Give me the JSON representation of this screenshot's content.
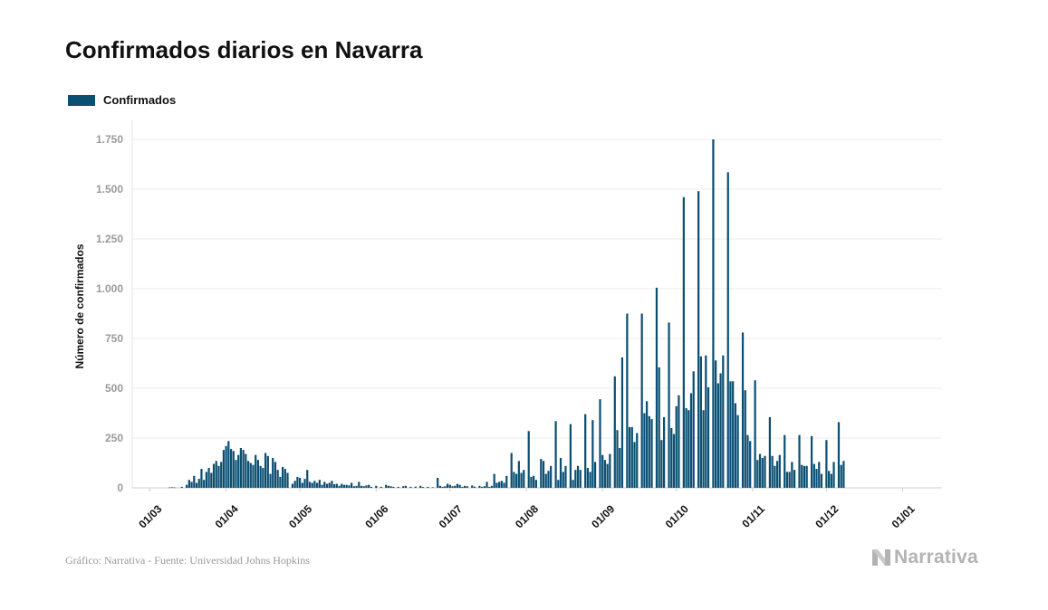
{
  "chart_data": {
    "type": "bar",
    "title": "Confirmados diarios en Navarra",
    "ylabel": "Número de confirmados",
    "xlabel": "",
    "ylim": [
      0,
      1750
    ],
    "yticks": [
      0,
      250,
      500,
      750,
      1000,
      1250,
      1500,
      1750
    ],
    "ytick_labels": [
      "0",
      "250",
      "500",
      "750",
      "1.000",
      "1.250",
      "1.500",
      "1.750"
    ],
    "xticks": [
      "01/03",
      "01/04",
      "01/05",
      "01/06",
      "01/07",
      "01/08",
      "01/09",
      "01/10",
      "01/11",
      "01/12",
      "01/01"
    ],
    "grid": true,
    "legend_position": "top-left",
    "series": [
      {
        "name": "Confirmados",
        "color": "#0b4f73",
        "points": [
          [
            "2020-03-09",
            2
          ],
          [
            "2020-03-10",
            3
          ],
          [
            "2020-03-11",
            2
          ],
          [
            "2020-03-14",
            5
          ],
          [
            "2020-03-16",
            15
          ],
          [
            "2020-03-17",
            40
          ],
          [
            "2020-03-18",
            30
          ],
          [
            "2020-03-19",
            60
          ],
          [
            "2020-03-20",
            25
          ],
          [
            "2020-03-21",
            45
          ],
          [
            "2020-03-22",
            95
          ],
          [
            "2020-03-23",
            40
          ],
          [
            "2020-03-24",
            80
          ],
          [
            "2020-03-25",
            100
          ],
          [
            "2020-03-26",
            75
          ],
          [
            "2020-03-27",
            120
          ],
          [
            "2020-03-28",
            135
          ],
          [
            "2020-03-29",
            110
          ],
          [
            "2020-03-30",
            130
          ],
          [
            "2020-03-31",
            190
          ],
          [
            "2020-04-01",
            210
          ],
          [
            "2020-04-02",
            235
          ],
          [
            "2020-04-03",
            195
          ],
          [
            "2020-04-04",
            185
          ],
          [
            "2020-04-05",
            140
          ],
          [
            "2020-04-06",
            165
          ],
          [
            "2020-04-07",
            200
          ],
          [
            "2020-04-08",
            190
          ],
          [
            "2020-04-09",
            170
          ],
          [
            "2020-04-10",
            135
          ],
          [
            "2020-04-11",
            125
          ],
          [
            "2020-04-12",
            115
          ],
          [
            "2020-04-13",
            165
          ],
          [
            "2020-04-14",
            140
          ],
          [
            "2020-04-15",
            110
          ],
          [
            "2020-04-16",
            100
          ],
          [
            "2020-04-17",
            175
          ],
          [
            "2020-04-18",
            160
          ],
          [
            "2020-04-19",
            70
          ],
          [
            "2020-04-20",
            150
          ],
          [
            "2020-04-21",
            130
          ],
          [
            "2020-04-22",
            90
          ],
          [
            "2020-04-23",
            55
          ],
          [
            "2020-04-24",
            105
          ],
          [
            "2020-04-25",
            95
          ],
          [
            "2020-04-26",
            75
          ],
          [
            "2020-04-28",
            20
          ],
          [
            "2020-04-29",
            35
          ],
          [
            "2020-04-30",
            55
          ],
          [
            "2020-05-01",
            50
          ],
          [
            "2020-05-02",
            25
          ],
          [
            "2020-05-03",
            45
          ],
          [
            "2020-05-04",
            90
          ],
          [
            "2020-05-05",
            30
          ],
          [
            "2020-05-06",
            25
          ],
          [
            "2020-05-07",
            35
          ],
          [
            "2020-05-08",
            25
          ],
          [
            "2020-05-09",
            40
          ],
          [
            "2020-05-10",
            15
          ],
          [
            "2020-05-11",
            30
          ],
          [
            "2020-05-12",
            20
          ],
          [
            "2020-05-13",
            25
          ],
          [
            "2020-05-14",
            35
          ],
          [
            "2020-05-15",
            18
          ],
          [
            "2020-05-16",
            20
          ],
          [
            "2020-05-17",
            10
          ],
          [
            "2020-05-18",
            20
          ],
          [
            "2020-05-19",
            15
          ],
          [
            "2020-05-20",
            15
          ],
          [
            "2020-05-21",
            12
          ],
          [
            "2020-05-22",
            25
          ],
          [
            "2020-05-23",
            8
          ],
          [
            "2020-05-24",
            10
          ],
          [
            "2020-05-25",
            30
          ],
          [
            "2020-05-26",
            10
          ],
          [
            "2020-05-27",
            8
          ],
          [
            "2020-05-28",
            12
          ],
          [
            "2020-05-29",
            15
          ],
          [
            "2020-05-30",
            5
          ],
          [
            "2020-06-01",
            10
          ],
          [
            "2020-06-03",
            5
          ],
          [
            "2020-06-05",
            15
          ],
          [
            "2020-06-06",
            10
          ],
          [
            "2020-06-07",
            8
          ],
          [
            "2020-06-08",
            5
          ],
          [
            "2020-06-10",
            5
          ],
          [
            "2020-06-12",
            8
          ],
          [
            "2020-06-13",
            10
          ],
          [
            "2020-06-15",
            5
          ],
          [
            "2020-06-17",
            6
          ],
          [
            "2020-06-19",
            10
          ],
          [
            "2020-06-20",
            4
          ],
          [
            "2020-06-22",
            5
          ],
          [
            "2020-06-24",
            3
          ],
          [
            "2020-06-26",
            50
          ],
          [
            "2020-06-27",
            10
          ],
          [
            "2020-06-28",
            5
          ],
          [
            "2020-06-29",
            8
          ],
          [
            "2020-06-30",
            20
          ],
          [
            "2020-07-01",
            15
          ],
          [
            "2020-07-02",
            8
          ],
          [
            "2020-07-03",
            10
          ],
          [
            "2020-07-04",
            20
          ],
          [
            "2020-07-05",
            15
          ],
          [
            "2020-07-06",
            5
          ],
          [
            "2020-07-07",
            10
          ],
          [
            "2020-07-08",
            8
          ],
          [
            "2020-07-10",
            12
          ],
          [
            "2020-07-11",
            6
          ],
          [
            "2020-07-13",
            10
          ],
          [
            "2020-07-14",
            5
          ],
          [
            "2020-07-15",
            8
          ],
          [
            "2020-07-16",
            30
          ],
          [
            "2020-07-17",
            5
          ],
          [
            "2020-07-18",
            10
          ],
          [
            "2020-07-19",
            70
          ],
          [
            "2020-07-20",
            25
          ],
          [
            "2020-07-21",
            30
          ],
          [
            "2020-07-22",
            35
          ],
          [
            "2020-07-23",
            25
          ],
          [
            "2020-07-24",
            60
          ],
          [
            "2020-07-26",
            175
          ],
          [
            "2020-07-27",
            80
          ],
          [
            "2020-07-28",
            70
          ],
          [
            "2020-07-29",
            135
          ],
          [
            "2020-07-30",
            75
          ],
          [
            "2020-07-31",
            90
          ],
          [
            "2020-08-02",
            285
          ],
          [
            "2020-08-03",
            55
          ],
          [
            "2020-08-04",
            60
          ],
          [
            "2020-08-05",
            40
          ],
          [
            "2020-08-07",
            145
          ],
          [
            "2020-08-08",
            135
          ],
          [
            "2020-08-09",
            70
          ],
          [
            "2020-08-10",
            85
          ],
          [
            "2020-08-11",
            110
          ],
          [
            "2020-08-13",
            335
          ],
          [
            "2020-08-14",
            40
          ],
          [
            "2020-08-15",
            150
          ],
          [
            "2020-08-16",
            80
          ],
          [
            "2020-08-17",
            110
          ],
          [
            "2020-08-19",
            320
          ],
          [
            "2020-08-20",
            40
          ],
          [
            "2020-08-21",
            90
          ],
          [
            "2020-08-22",
            110
          ],
          [
            "2020-08-23",
            90
          ],
          [
            "2020-08-25",
            370
          ],
          [
            "2020-08-26",
            100
          ],
          [
            "2020-08-27",
            80
          ],
          [
            "2020-08-28",
            340
          ],
          [
            "2020-08-29",
            130
          ],
          [
            "2020-08-31",
            445
          ],
          [
            "2020-09-01",
            165
          ],
          [
            "2020-09-02",
            140
          ],
          [
            "2020-09-03",
            120
          ],
          [
            "2020-09-04",
            170
          ],
          [
            "2020-09-06",
            560
          ],
          [
            "2020-09-07",
            290
          ],
          [
            "2020-09-08",
            200
          ],
          [
            "2020-09-09",
            655
          ],
          [
            "2020-09-11",
            875
          ],
          [
            "2020-09-12",
            305
          ],
          [
            "2020-09-13",
            305
          ],
          [
            "2020-09-14",
            230
          ],
          [
            "2020-09-15",
            275
          ],
          [
            "2020-09-17",
            875
          ],
          [
            "2020-09-18",
            375
          ],
          [
            "2020-09-19",
            435
          ],
          [
            "2020-09-20",
            360
          ],
          [
            "2020-09-21",
            345
          ],
          [
            "2020-09-23",
            1005
          ],
          [
            "2020-09-24",
            605
          ],
          [
            "2020-09-25",
            240
          ],
          [
            "2020-09-26",
            355
          ],
          [
            "2020-09-28",
            830
          ],
          [
            "2020-09-29",
            300
          ],
          [
            "2020-09-30",
            270
          ],
          [
            "2020-10-01",
            410
          ],
          [
            "2020-10-02",
            465
          ],
          [
            "2020-10-04",
            1460
          ],
          [
            "2020-10-05",
            400
          ],
          [
            "2020-10-06",
            390
          ],
          [
            "2020-10-07",
            475
          ],
          [
            "2020-10-08",
            585
          ],
          [
            "2020-10-10",
            1490
          ],
          [
            "2020-10-11",
            660
          ],
          [
            "2020-10-12",
            390
          ],
          [
            "2020-10-13",
            665
          ],
          [
            "2020-10-14",
            505
          ],
          [
            "2020-10-16",
            1750
          ],
          [
            "2020-10-17",
            640
          ],
          [
            "2020-10-18",
            525
          ],
          [
            "2020-10-19",
            575
          ],
          [
            "2020-10-20",
            665
          ],
          [
            "2020-10-22",
            1585
          ],
          [
            "2020-10-23",
            535
          ],
          [
            "2020-10-24",
            535
          ],
          [
            "2020-10-25",
            425
          ],
          [
            "2020-10-26",
            365
          ],
          [
            "2020-10-28",
            780
          ],
          [
            "2020-10-29",
            490
          ],
          [
            "2020-10-30",
            265
          ],
          [
            "2020-10-31",
            235
          ],
          [
            "2020-11-02",
            540
          ],
          [
            "2020-11-03",
            140
          ],
          [
            "2020-11-04",
            170
          ],
          [
            "2020-11-05",
            150
          ],
          [
            "2020-11-06",
            160
          ],
          [
            "2020-11-08",
            355
          ],
          [
            "2020-11-09",
            160
          ],
          [
            "2020-11-10",
            110
          ],
          [
            "2020-11-11",
            135
          ],
          [
            "2020-11-12",
            165
          ],
          [
            "2020-11-14",
            265
          ],
          [
            "2020-11-15",
            80
          ],
          [
            "2020-11-16",
            80
          ],
          [
            "2020-11-17",
            130
          ],
          [
            "2020-11-18",
            90
          ],
          [
            "2020-11-20",
            265
          ],
          [
            "2020-11-21",
            115
          ],
          [
            "2020-11-22",
            110
          ],
          [
            "2020-11-23",
            110
          ],
          [
            "2020-11-25",
            260
          ],
          [
            "2020-11-26",
            120
          ],
          [
            "2020-11-27",
            95
          ],
          [
            "2020-11-28",
            130
          ],
          [
            "2020-11-29",
            70
          ],
          [
            "2020-12-01",
            240
          ],
          [
            "2020-12-02",
            85
          ],
          [
            "2020-12-03",
            70
          ],
          [
            "2020-12-04",
            130
          ],
          [
            "2020-12-06",
            330
          ],
          [
            "2020-12-07",
            115
          ],
          [
            "2020-12-08",
            135
          ]
        ]
      }
    ]
  },
  "footer": {
    "source": "Gráfico: Narrativa - Fuente: Universidad Johns Hopkins",
    "brand": "Narrativa"
  }
}
